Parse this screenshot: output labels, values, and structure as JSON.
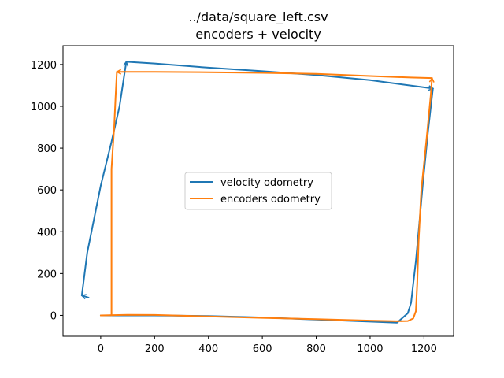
{
  "chart_data": {
    "type": "line",
    "title": "../data/square_left.csv",
    "subtitle": "encoders + velocity",
    "xlabel": "",
    "ylabel": "",
    "xlim": [
      -140,
      1310
    ],
    "ylim": [
      -100,
      1290
    ],
    "xticks": [
      0,
      200,
      400,
      600,
      800,
      1000,
      1200
    ],
    "yticks": [
      0,
      200,
      400,
      600,
      800,
      1000,
      1200
    ],
    "xtick_labels": [
      "0",
      "200",
      "400",
      "600",
      "800",
      "1000",
      "1200"
    ],
    "ytick_labels": [
      "0",
      "200",
      "400",
      "600",
      "800",
      "1000",
      "1200"
    ],
    "grid": false,
    "legend_position": "center",
    "series": [
      {
        "name": "velocity odometry",
        "color": "#1f77b4",
        "x": [
          -45,
          -70,
          -50,
          0,
          40,
          70,
          95,
          200,
          400,
          600,
          800,
          1000,
          1233,
          1215,
          1195,
          1180,
          1170,
          1160,
          1152,
          1140,
          1100,
          1000,
          800,
          600,
          400,
          200,
          60,
          0
        ],
        "y": [
          85,
          95,
          300,
          620,
          830,
          1000,
          1213,
          1205,
          1185,
          1168,
          1150,
          1125,
          1085,
          880,
          620,
          400,
          260,
          150,
          60,
          10,
          -35,
          -30,
          -20,
          -10,
          -3,
          0,
          0,
          0
        ]
      },
      {
        "name": "encoders odometry",
        "color": "#ff7f0e",
        "x": [
          0,
          100,
          200,
          400,
          600,
          800,
          1000,
          1100,
          1140,
          1160,
          1170,
          1175,
          1180,
          1190,
          1210,
          1225,
          1230,
          1150,
          1000,
          800,
          600,
          400,
          200,
          60,
          55,
          50,
          40,
          40,
          40
        ],
        "y": [
          0,
          3,
          2,
          -5,
          -12,
          -18,
          -25,
          -28,
          -27,
          -15,
          20,
          150,
          350,
          600,
          850,
          1050,
          1135,
          1138,
          1145,
          1155,
          1160,
          1163,
          1165,
          1165,
          1040,
          900,
          700,
          400,
          0
        ]
      }
    ]
  }
}
